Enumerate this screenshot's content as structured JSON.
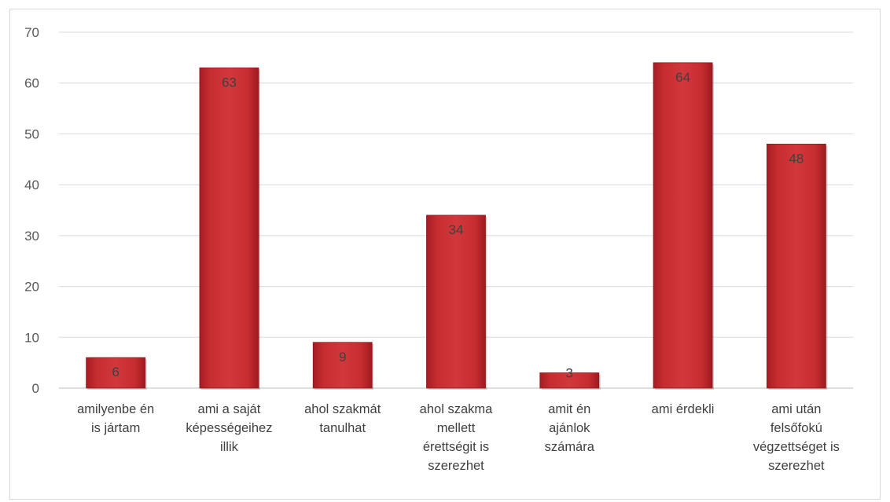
{
  "chart_data": {
    "type": "bar",
    "title": "",
    "xlabel": "",
    "ylabel": "",
    "ylim": [
      0,
      70
    ],
    "yticks": [
      0,
      10,
      20,
      30,
      40,
      50,
      60,
      70
    ],
    "grid": true,
    "legend": "none",
    "bar_color": "#c0282b",
    "categories": [
      [
        "amilyenbe én",
        "is jártam"
      ],
      [
        "ami a saját",
        "képességeihez",
        "illik"
      ],
      [
        "ahol szakmát",
        "tanulhat"
      ],
      [
        "ahol szakma",
        "mellett",
        "érettségit is",
        "szerezhet"
      ],
      [
        "amit én",
        "ajánlok",
        "számára"
      ],
      [
        "ami érdekli"
      ],
      [
        "ami után",
        "felsőfokú",
        "végzettséget is",
        "szerezhet"
      ]
    ],
    "values": [
      6,
      63,
      9,
      34,
      3,
      64,
      48
    ],
    "data_labels": [
      "6",
      "63",
      "9",
      "34",
      "3",
      "64",
      "48"
    ]
  }
}
